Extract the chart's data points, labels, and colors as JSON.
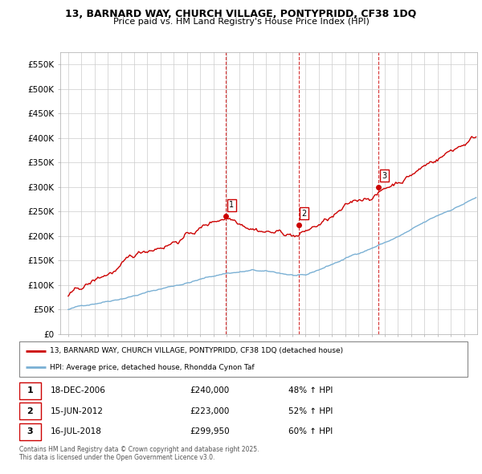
{
  "title_line1": "13, BARNARD WAY, CHURCH VILLAGE, PONTYPRIDD, CF38 1DQ",
  "title_line2": "Price paid vs. HM Land Registry's House Price Index (HPI)",
  "red_label": "13, BARNARD WAY, CHURCH VILLAGE, PONTYPRIDD, CF38 1DQ (detached house)",
  "blue_label": "HPI: Average price, detached house, Rhondda Cynon Taf",
  "sale_points": [
    {
      "num": 1,
      "date": "18-DEC-2006",
      "price": 240000,
      "pct": "48% ↑ HPI",
      "x_year": 2006.96
    },
    {
      "num": 2,
      "date": "15-JUN-2012",
      "price": 223000,
      "pct": "52% ↑ HPI",
      "x_year": 2012.46
    },
    {
      "num": 3,
      "date": "16-JUL-2018",
      "price": 299950,
      "pct": "60% ↑ HPI",
      "x_year": 2018.54
    }
  ],
  "footnote": "Contains HM Land Registry data © Crown copyright and database right 2025.\nThis data is licensed under the Open Government Licence v3.0.",
  "ylim": [
    0,
    575000
  ],
  "yticks": [
    0,
    50000,
    100000,
    150000,
    200000,
    250000,
    300000,
    350000,
    400000,
    450000,
    500000,
    550000
  ],
  "ytick_labels": [
    "£0",
    "£50K",
    "£100K",
    "£150K",
    "£200K",
    "£250K",
    "£300K",
    "£350K",
    "£400K",
    "£450K",
    "£500K",
    "£550K"
  ],
  "red_color": "#cc0000",
  "blue_color": "#7ab0d4",
  "dashed_color": "#cc0000",
  "background_color": "#ffffff",
  "grid_color": "#cccccc",
  "x_start": 1995,
  "x_end": 2025,
  "xlim_left": 1994.4,
  "xlim_right": 2026.0
}
